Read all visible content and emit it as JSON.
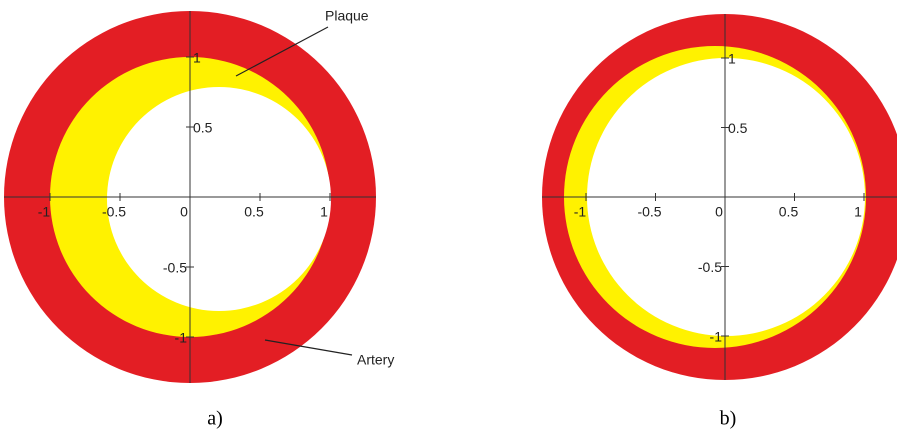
{
  "panels": [
    {
      "caption": "a)",
      "xticks": [
        -1,
        -0.5,
        0,
        0.5,
        1
      ],
      "yticks": [
        1,
        0.5,
        -0.5,
        -1
      ],
      "annotations": [
        "Plaque",
        "Artery"
      ]
    },
    {
      "caption": "b)",
      "xticks": [
        -1,
        -0.5,
        0,
        0.5,
        1
      ],
      "yticks": [
        1,
        0.5,
        -0.5,
        -1
      ]
    }
  ]
}
